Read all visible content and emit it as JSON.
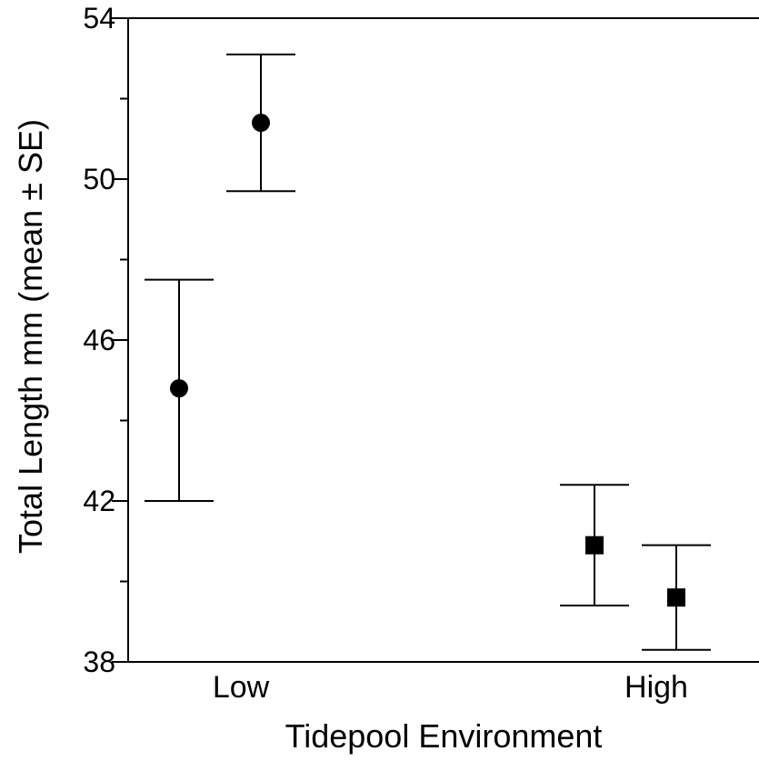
{
  "chart_data": {
    "type": "scatter",
    "xlabel": "Tidepool Environment",
    "ylabel": "Total Length mm (mean ± SE)",
    "categories": [
      "Low",
      "High"
    ],
    "ylim": [
      38,
      54
    ],
    "yticks": [
      38,
      42,
      46,
      50,
      54
    ],
    "grid": false,
    "series": [
      {
        "category": "Low",
        "marker": "circle",
        "points": [
          {
            "mean": 44.8,
            "lower": 42.0,
            "upper": 47.5
          },
          {
            "mean": 51.4,
            "lower": 49.7,
            "upper": 53.1
          }
        ]
      },
      {
        "category": "High",
        "marker": "square",
        "points": [
          {
            "mean": 40.9,
            "lower": 39.4,
            "upper": 42.4
          },
          {
            "mean": 39.6,
            "lower": 38.3,
            "upper": 40.9
          }
        ]
      }
    ],
    "marker_color": "#000000"
  }
}
